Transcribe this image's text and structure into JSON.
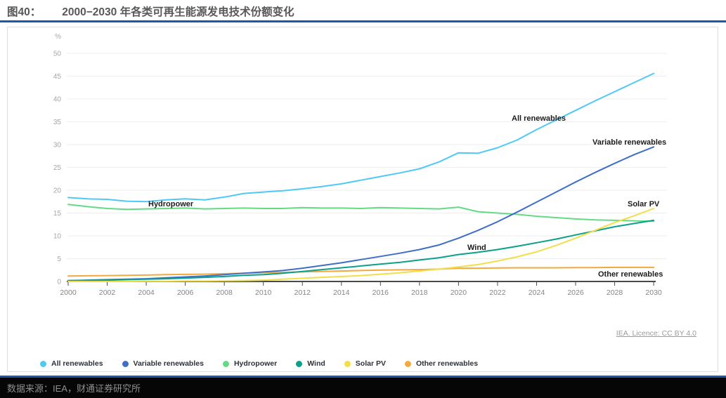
{
  "header": {
    "figure_label": "图40：",
    "title": "2000−2030 年各类可再生能源发电技术份额变化"
  },
  "footer": {
    "source_text": "数据来源：IEA，财通证券研究所"
  },
  "chart_data": {
    "type": "line",
    "title": "2000−2030 年各类可再生能源发电技术份额变化",
    "unit_label": "%",
    "licence_text": "IEA. Licence: CC BY 4.0",
    "xlabel": "",
    "ylabel": "%",
    "ylim": [
      0,
      50
    ],
    "grid": true,
    "legend_position": "bottom",
    "x": [
      2000,
      2001,
      2002,
      2003,
      2004,
      2005,
      2006,
      2007,
      2008,
      2009,
      2010,
      2011,
      2012,
      2013,
      2014,
      2015,
      2016,
      2017,
      2018,
      2019,
      2020,
      2021,
      2022,
      2023,
      2024,
      2025,
      2026,
      2027,
      2028,
      2029,
      2030
    ],
    "x_ticks": [
      2000,
      2002,
      2004,
      2006,
      2008,
      2010,
      2012,
      2014,
      2016,
      2018,
      2020,
      2022,
      2024,
      2026,
      2028,
      2030
    ],
    "y_ticks": [
      0,
      5,
      10,
      15,
      20,
      25,
      30,
      35,
      40,
      45,
      50
    ],
    "series": [
      {
        "name": "All renewables",
        "color": "#4ec9f5",
        "values": [
          18.4,
          18.1,
          18.0,
          17.6,
          17.5,
          17.9,
          18.1,
          17.9,
          18.5,
          19.3,
          19.6,
          19.9,
          20.3,
          20.8,
          21.4,
          22.2,
          23.0,
          23.8,
          24.7,
          26.2,
          28.2,
          28.1,
          29.3,
          31.0,
          33.3,
          35.4,
          37.5,
          39.6,
          41.6,
          43.6,
          45.6
        ]
      },
      {
        "name": "Variable renewables",
        "color": "#3e6ec6",
        "values": [
          0.2,
          0.3,
          0.4,
          0.5,
          0.6,
          0.8,
          1.0,
          1.2,
          1.5,
          1.8,
          2.1,
          2.4,
          2.9,
          3.5,
          4.1,
          4.8,
          5.5,
          6.2,
          7.0,
          8.0,
          9.5,
          11.2,
          13.1,
          15.2,
          17.4,
          19.6,
          21.8,
          23.9,
          25.9,
          27.8,
          29.5
        ]
      },
      {
        "name": "Hydropower",
        "color": "#63db84",
        "values": [
          16.9,
          16.4,
          16.0,
          15.8,
          15.9,
          16.0,
          16.1,
          15.9,
          16.0,
          16.1,
          16.0,
          16.0,
          16.2,
          16.1,
          16.1,
          16.0,
          16.2,
          16.1,
          16.0,
          15.9,
          16.3,
          15.3,
          15.0,
          14.7,
          14.3,
          14.0,
          13.7,
          13.5,
          13.4,
          13.3,
          13.2
        ]
      },
      {
        "name": "Wind",
        "color": "#0ba08c",
        "values": [
          0.2,
          0.25,
          0.3,
          0.4,
          0.5,
          0.6,
          0.75,
          0.9,
          1.1,
          1.35,
          1.5,
          1.8,
          2.2,
          2.6,
          3.0,
          3.4,
          3.8,
          4.2,
          4.7,
          5.2,
          5.9,
          6.4,
          7.0,
          7.7,
          8.5,
          9.3,
          10.2,
          11.1,
          12.0,
          12.7,
          13.4
        ]
      },
      {
        "name": "Solar PV",
        "color": "#f2de49",
        "values": [
          0.0,
          0.0,
          0.0,
          0.0,
          0.05,
          0.05,
          0.1,
          0.1,
          0.15,
          0.2,
          0.3,
          0.5,
          0.7,
          0.9,
          1.1,
          1.3,
          1.6,
          1.9,
          2.3,
          2.7,
          3.2,
          3.7,
          4.5,
          5.4,
          6.5,
          7.9,
          9.5,
          11.2,
          12.9,
          14.4,
          16.0
        ]
      },
      {
        "name": "Other renewables",
        "color": "#f2a93f",
        "values": [
          1.2,
          1.25,
          1.3,
          1.35,
          1.4,
          1.5,
          1.55,
          1.6,
          1.7,
          1.8,
          1.9,
          2.0,
          2.1,
          2.2,
          2.3,
          2.4,
          2.5,
          2.55,
          2.6,
          2.7,
          2.9,
          2.9,
          2.95,
          3.0,
          3.0,
          3.0,
          3.05,
          3.05,
          3.1,
          3.1,
          3.1
        ]
      }
    ]
  }
}
